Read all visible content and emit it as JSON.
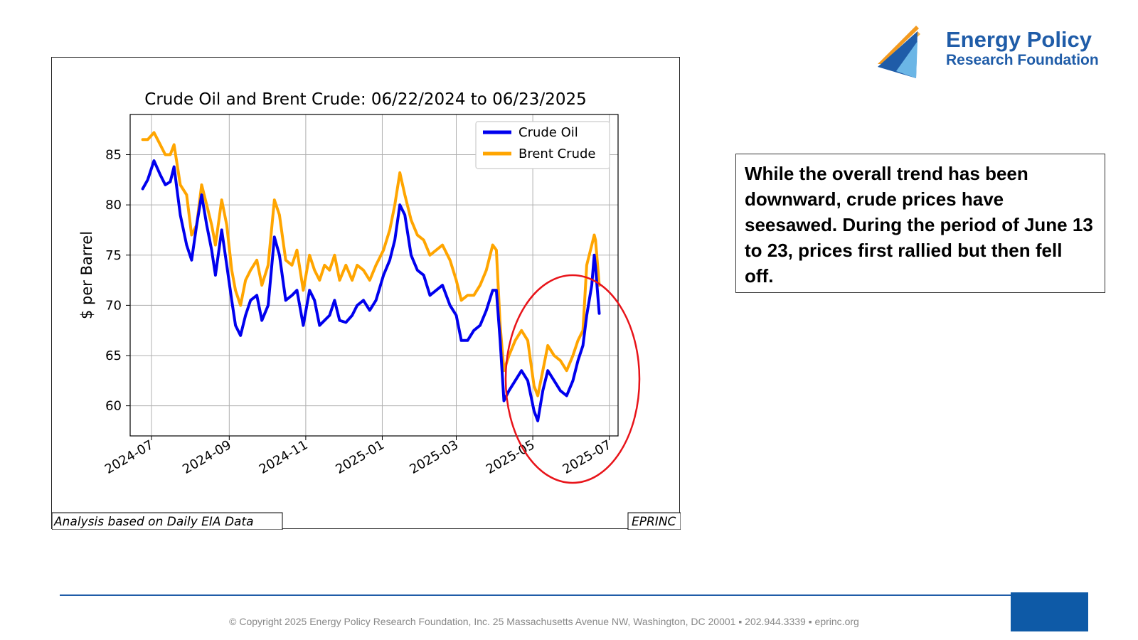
{
  "logo": {
    "line1": "Energy Policy",
    "line2": "Research Foundation",
    "colors": {
      "blue": "#1f5ca8",
      "orange": "#f39a1f",
      "light_blue": "#6bb6e6"
    }
  },
  "note": {
    "text": "While the overall trend has been downward, crude prices have seesawed. During the period of June 13 to 23, prices first rallied but then fell off."
  },
  "footer": {
    "text": "© Copyright 2025 Energy Policy Research Foundation, Inc. 25 Massachusetts Avenue NW, Washington, DC 20001 ▪ 202.944.3339 ▪ eprinc.org",
    "accent_color": "#0e5aa7"
  },
  "chart_data": {
    "type": "line",
    "title": "Crude Oil and Brent Crude: 06/22/2024 to 06/23/2025",
    "xlabel": "",
    "ylabel": "$ per Barrel",
    "x_ticks": [
      "2024-07",
      "2024-09",
      "2024-11",
      "2025-01",
      "2025-03",
      "2025-05",
      "2025-07"
    ],
    "y_ticks": [
      60,
      65,
      70,
      75,
      80,
      85
    ],
    "xlim": [
      "2024-06-14",
      "2025-07-08"
    ],
    "ylim": [
      57,
      89
    ],
    "grid": true,
    "legend_position": "top-right",
    "source_label": "Analysis based on Daily EIA Data",
    "credit_label": "EPRINC",
    "annotation": "red ellipse around April–June 2025",
    "series": [
      {
        "name": "Crude Oil",
        "color": "#0000ee",
        "points": [
          [
            "2024-06-24",
            81.6
          ],
          [
            "2024-06-28",
            82.5
          ],
          [
            "2024-07-03",
            84.4
          ],
          [
            "2024-07-08",
            83.0
          ],
          [
            "2024-07-12",
            82.0
          ],
          [
            "2024-07-16",
            82.3
          ],
          [
            "2024-07-19",
            83.8
          ],
          [
            "2024-07-24",
            79.0
          ],
          [
            "2024-07-29",
            76.0
          ],
          [
            "2024-08-02",
            74.5
          ],
          [
            "2024-08-06",
            78.0
          ],
          [
            "2024-08-10",
            81.0
          ],
          [
            "2024-08-14",
            78.0
          ],
          [
            "2024-08-18",
            75.5
          ],
          [
            "2024-08-21",
            73.0
          ],
          [
            "2024-08-26",
            77.5
          ],
          [
            "2024-08-30",
            74.0
          ],
          [
            "2024-09-03",
            70.5
          ],
          [
            "2024-09-06",
            68.0
          ],
          [
            "2024-09-10",
            67.0
          ],
          [
            "2024-09-14",
            69.0
          ],
          [
            "2024-09-18",
            70.5
          ],
          [
            "2024-09-23",
            71.0
          ],
          [
            "2024-09-27",
            68.5
          ],
          [
            "2024-10-02",
            70.0
          ],
          [
            "2024-10-07",
            76.8
          ],
          [
            "2024-10-11",
            75.0
          ],
          [
            "2024-10-16",
            70.5
          ],
          [
            "2024-10-21",
            71.0
          ],
          [
            "2024-10-25",
            71.5
          ],
          [
            "2024-10-30",
            68.0
          ],
          [
            "2024-11-04",
            71.5
          ],
          [
            "2024-11-08",
            70.5
          ],
          [
            "2024-11-12",
            68.0
          ],
          [
            "2024-11-16",
            68.5
          ],
          [
            "2024-11-20",
            69.0
          ],
          [
            "2024-11-24",
            70.5
          ],
          [
            "2024-11-28",
            68.5
          ],
          [
            "2024-12-03",
            68.3
          ],
          [
            "2024-12-08",
            69.0
          ],
          [
            "2024-12-12",
            70.0
          ],
          [
            "2024-12-17",
            70.5
          ],
          [
            "2024-12-22",
            69.5
          ],
          [
            "2024-12-27",
            70.5
          ],
          [
            "2025-01-02",
            73.0
          ],
          [
            "2025-01-07",
            74.5
          ],
          [
            "2025-01-11",
            76.5
          ],
          [
            "2025-01-15",
            80.0
          ],
          [
            "2025-01-19",
            79.0
          ],
          [
            "2025-01-24",
            75.0
          ],
          [
            "2025-01-29",
            73.5
          ],
          [
            "2025-02-03",
            73.0
          ],
          [
            "2025-02-08",
            71.0
          ],
          [
            "2025-02-13",
            71.5
          ],
          [
            "2025-02-18",
            72.0
          ],
          [
            "2025-02-24",
            70.0
          ],
          [
            "2025-03-01",
            69.0
          ],
          [
            "2025-03-05",
            66.5
          ],
          [
            "2025-03-10",
            66.5
          ],
          [
            "2025-03-15",
            67.5
          ],
          [
            "2025-03-20",
            68.0
          ],
          [
            "2025-03-25",
            69.5
          ],
          [
            "2025-03-30",
            71.5
          ],
          [
            "2025-04-02",
            71.5
          ],
          [
            "2025-04-05",
            66.5
          ],
          [
            "2025-04-08",
            60.5
          ],
          [
            "2025-04-12",
            61.5
          ],
          [
            "2025-04-17",
            62.5
          ],
          [
            "2025-04-22",
            63.5
          ],
          [
            "2025-04-27",
            62.5
          ],
          [
            "2025-05-02",
            59.5
          ],
          [
            "2025-05-05",
            58.5
          ],
          [
            "2025-05-09",
            61.5
          ],
          [
            "2025-05-13",
            63.5
          ],
          [
            "2025-05-18",
            62.5
          ],
          [
            "2025-05-23",
            61.5
          ],
          [
            "2025-05-28",
            61.0
          ],
          [
            "2025-06-02",
            62.5
          ],
          [
            "2025-06-06",
            64.5
          ],
          [
            "2025-06-10",
            66.0
          ],
          [
            "2025-06-13",
            69.0
          ],
          [
            "2025-06-17",
            72.0
          ],
          [
            "2025-06-19",
            75.0
          ],
          [
            "2025-06-20",
            73.8
          ],
          [
            "2025-06-23",
            69.2
          ]
        ]
      },
      {
        "name": "Brent Crude",
        "color": "#ffa500",
        "points": [
          [
            "2024-06-24",
            86.5
          ],
          [
            "2024-06-28",
            86.5
          ],
          [
            "2024-07-03",
            87.2
          ],
          [
            "2024-07-08",
            86.0
          ],
          [
            "2024-07-12",
            85.0
          ],
          [
            "2024-07-16",
            85.0
          ],
          [
            "2024-07-19",
            86.0
          ],
          [
            "2024-07-24",
            82.0
          ],
          [
            "2024-07-29",
            81.0
          ],
          [
            "2024-08-02",
            77.0
          ],
          [
            "2024-08-06",
            78.0
          ],
          [
            "2024-08-10",
            82.0
          ],
          [
            "2024-08-14",
            80.0
          ],
          [
            "2024-08-18",
            78.0
          ],
          [
            "2024-08-21",
            76.0
          ],
          [
            "2024-08-26",
            80.5
          ],
          [
            "2024-08-30",
            78.0
          ],
          [
            "2024-09-03",
            73.5
          ],
          [
            "2024-09-06",
            71.5
          ],
          [
            "2024-09-10",
            70.0
          ],
          [
            "2024-09-14",
            72.5
          ],
          [
            "2024-09-18",
            73.5
          ],
          [
            "2024-09-23",
            74.5
          ],
          [
            "2024-09-27",
            72.0
          ],
          [
            "2024-10-02",
            74.0
          ],
          [
            "2024-10-07",
            80.5
          ],
          [
            "2024-10-11",
            79.0
          ],
          [
            "2024-10-16",
            74.5
          ],
          [
            "2024-10-21",
            74.0
          ],
          [
            "2024-10-25",
            75.5
          ],
          [
            "2024-10-30",
            71.5
          ],
          [
            "2024-11-04",
            75.0
          ],
          [
            "2024-11-08",
            73.5
          ],
          [
            "2024-11-12",
            72.5
          ],
          [
            "2024-11-16",
            74.0
          ],
          [
            "2024-11-20",
            73.5
          ],
          [
            "2024-11-24",
            75.0
          ],
          [
            "2024-11-28",
            72.5
          ],
          [
            "2024-12-03",
            74.0
          ],
          [
            "2024-12-08",
            72.5
          ],
          [
            "2024-12-12",
            74.0
          ],
          [
            "2024-12-17",
            73.5
          ],
          [
            "2024-12-22",
            72.5
          ],
          [
            "2024-12-27",
            74.0
          ],
          [
            "2025-01-02",
            75.5
          ],
          [
            "2025-01-07",
            77.5
          ],
          [
            "2025-01-11",
            80.0
          ],
          [
            "2025-01-15",
            83.2
          ],
          [
            "2025-01-19",
            81.0
          ],
          [
            "2025-01-24",
            78.5
          ],
          [
            "2025-01-29",
            77.0
          ],
          [
            "2025-02-03",
            76.5
          ],
          [
            "2025-02-08",
            75.0
          ],
          [
            "2025-02-13",
            75.5
          ],
          [
            "2025-02-18",
            76.0
          ],
          [
            "2025-02-24",
            74.5
          ],
          [
            "2025-03-01",
            72.5
          ],
          [
            "2025-03-05",
            70.5
          ],
          [
            "2025-03-10",
            71.0
          ],
          [
            "2025-03-15",
            71.0
          ],
          [
            "2025-03-20",
            72.0
          ],
          [
            "2025-03-25",
            73.5
          ],
          [
            "2025-03-30",
            76.0
          ],
          [
            "2025-04-02",
            75.5
          ],
          [
            "2025-04-05",
            68.0
          ],
          [
            "2025-04-08",
            63.5
          ],
          [
            "2025-04-12",
            65.0
          ],
          [
            "2025-04-17",
            66.5
          ],
          [
            "2025-04-22",
            67.5
          ],
          [
            "2025-04-27",
            66.5
          ],
          [
            "2025-05-02",
            62.0
          ],
          [
            "2025-05-05",
            61.0
          ],
          [
            "2025-05-09",
            63.5
          ],
          [
            "2025-05-13",
            66.0
          ],
          [
            "2025-05-18",
            65.0
          ],
          [
            "2025-05-23",
            64.5
          ],
          [
            "2025-05-28",
            63.5
          ],
          [
            "2025-06-02",
            65.0
          ],
          [
            "2025-06-06",
            66.5
          ],
          [
            "2025-06-10",
            67.5
          ],
          [
            "2025-06-13",
            74.0
          ],
          [
            "2025-06-17",
            76.0
          ],
          [
            "2025-06-19",
            77.0
          ],
          [
            "2025-06-20",
            76.5
          ],
          [
            "2025-06-23",
            72.0
          ]
        ]
      }
    ]
  }
}
